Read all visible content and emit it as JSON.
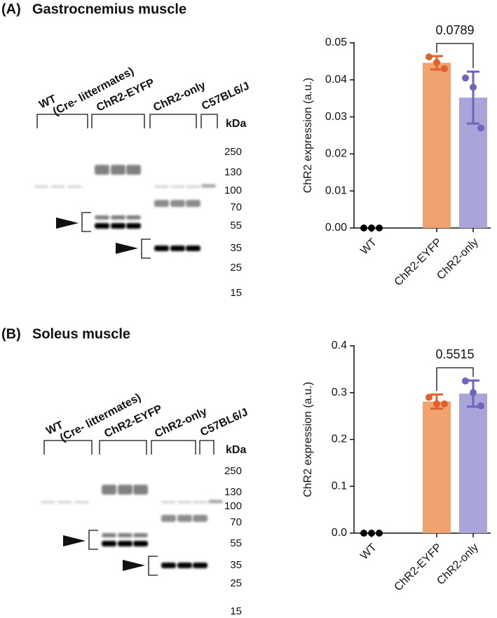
{
  "panels": [
    {
      "label": "(A)",
      "title": "Gastrocnemius muscle",
      "lanes": [
        "WT",
        "(Cre- littermates)",
        "ChR2-EYFP",
        "ChR2-only",
        "C57BL6/J"
      ],
      "unit": "kDa",
      "markers": [
        250,
        130,
        100,
        70,
        55,
        35,
        25,
        15
      ]
    },
    {
      "label": "(B)",
      "title": "Soleus muscle",
      "lanes": [
        "WT",
        "(Cre- littermates)",
        "ChR2-EYFP",
        "ChR2-only",
        "C57BL6/J"
      ],
      "unit": "kDa",
      "markers": [
        250,
        130,
        100,
        70,
        55,
        35,
        25,
        15
      ]
    }
  ],
  "chart_data": [
    {
      "type": "bar",
      "y_label": "ChR2 expression (a.u.)",
      "categories": [
        "WT",
        "ChR2-EYFP",
        "ChR2-only"
      ],
      "values": [
        0,
        0.0446,
        0.0352
      ],
      "errors": [
        null,
        0.0018,
        0.007
      ],
      "points": [
        [
          0,
          0,
          0
        ],
        [
          0.0462,
          0.0447,
          0.043
        ],
        [
          0.0405,
          0.038,
          0.027
        ]
      ],
      "colors": [
        "#000000",
        "#f0a36e",
        "#a9a5d8"
      ],
      "point_colors": [
        "#000000",
        "#e0622a",
        "#6f63bd"
      ],
      "ylim": [
        0,
        0.05
      ],
      "yticks": [
        {
          "value": 0,
          "label": "0.00"
        },
        0.01,
        0.02,
        0.03,
        0.04,
        0.05
      ],
      "annotation": {
        "text": "0.0789",
        "between": [
          1,
          2
        ]
      }
    },
    {
      "type": "bar",
      "y_label": "ChR2 expression (a.u.)",
      "categories": [
        "WT",
        "ChR2-EYFP",
        "ChR2-only"
      ],
      "values": [
        0,
        0.281,
        0.298
      ],
      "errors": [
        null,
        0.015,
        0.028
      ],
      "points": [
        [
          0,
          0,
          0
        ],
        [
          0.29,
          0.276,
          0.276
        ],
        [
          0.325,
          0.3,
          0.272
        ]
      ],
      "colors": [
        "#000000",
        "#f0a36e",
        "#a9a5d8"
      ],
      "point_colors": [
        "#000000",
        "#e0622a",
        "#6f63bd"
      ],
      "ylim": [
        0,
        0.4
      ],
      "yticks": [
        {
          "value": 0,
          "label": "0.0"
        },
        0.1,
        0.2,
        0.3,
        0.4
      ],
      "annotation": {
        "text": "0.5515",
        "between": [
          1,
          2
        ]
      }
    }
  ]
}
